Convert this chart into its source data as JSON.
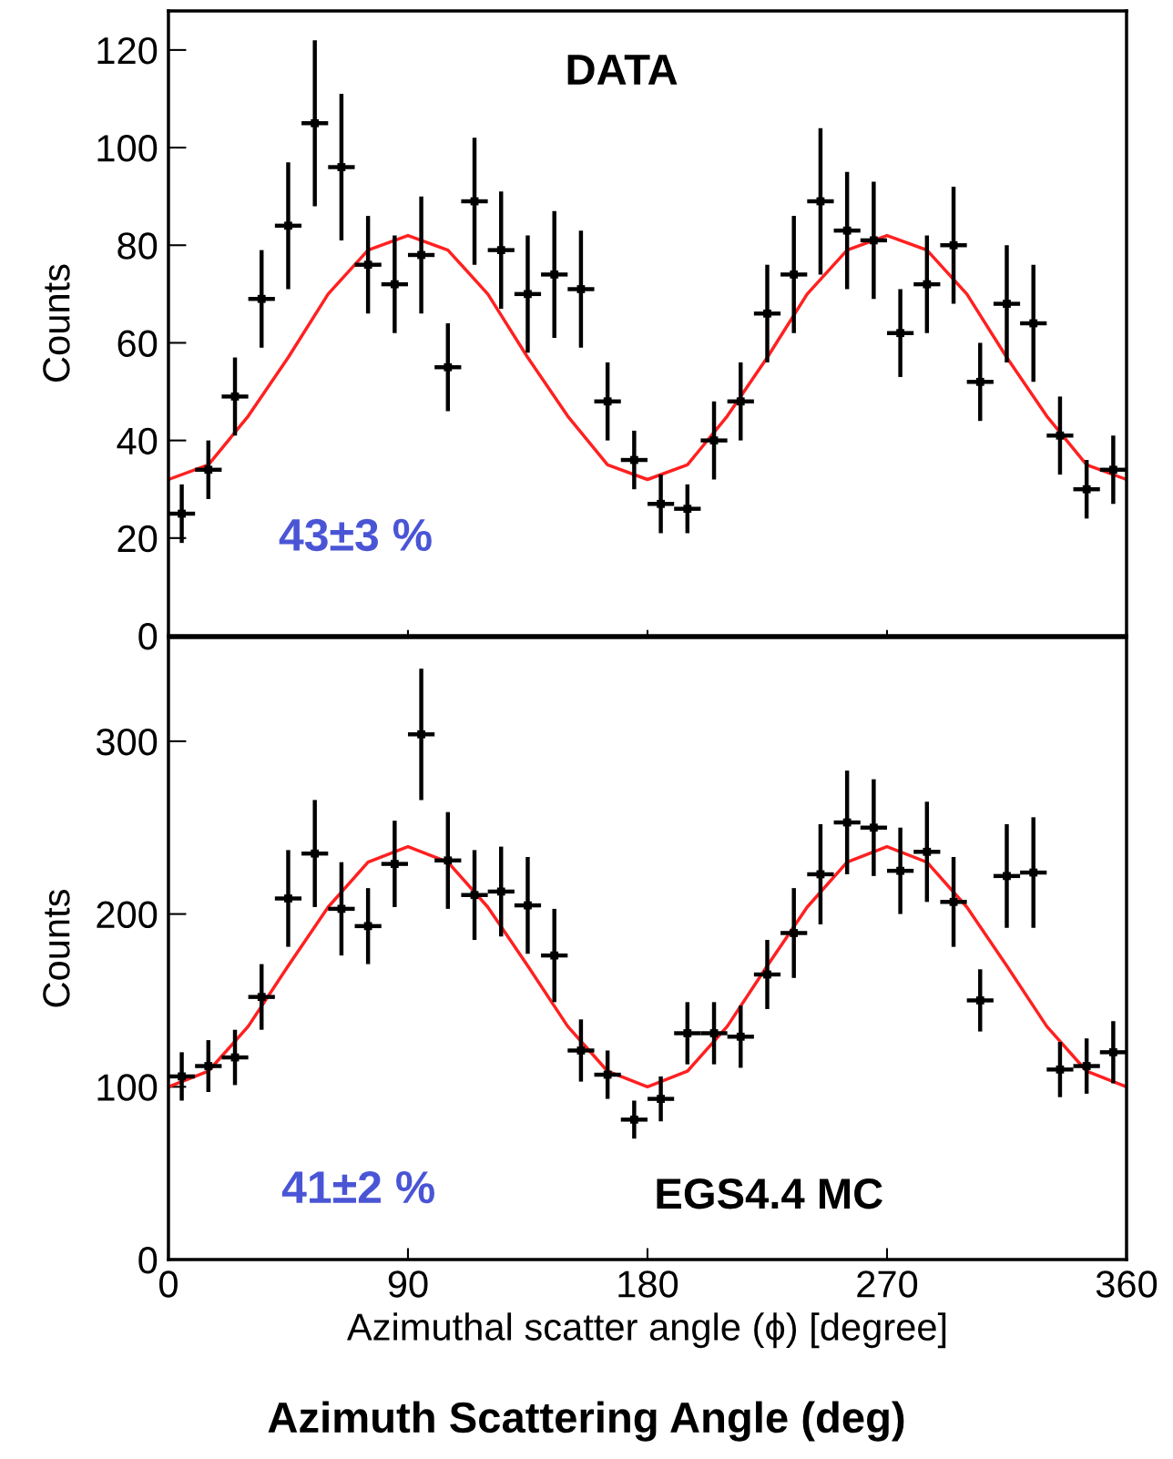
{
  "chart_data": [
    {
      "type": "scatter",
      "xlim": [
        0,
        360
      ],
      "xticks": [
        {
          "value": 0,
          "label": null
        },
        {
          "value": 90,
          "label": null
        },
        {
          "value": 180,
          "label": null
        },
        {
          "value": 270,
          "label": null
        },
        {
          "value": 360,
          "label": null
        }
      ],
      "ylim": [
        0,
        128
      ],
      "ylabel": "Counts",
      "tick_labels": "y",
      "grid": false,
      "legend": false,
      "yticks": [
        0,
        20,
        40,
        60,
        80,
        100,
        120
      ],
      "annotations": [
        "DATA",
        "43±3 %"
      ],
      "series": [
        {
          "color": "#000000",
          "marker": "square",
          "x": [
            5,
            15,
            25,
            35,
            45,
            55,
            65,
            75,
            85,
            95,
            105,
            115,
            125,
            135,
            145,
            155,
            165,
            175,
            185,
            195,
            205,
            215,
            225,
            235,
            245,
            255,
            265,
            275,
            285,
            295,
            305,
            315,
            325,
            335,
            345,
            355
          ],
          "values": [
            25,
            34,
            49,
            69,
            84,
            105,
            96,
            76,
            72,
            78,
            55,
            89,
            79,
            70,
            74,
            71,
            48,
            36,
            27,
            26,
            40,
            48,
            66,
            74,
            89,
            83,
            81,
            62,
            72,
            80,
            52,
            68,
            64,
            41,
            30,
            34
          ],
          "errors": [
            6,
            6,
            8,
            10,
            13,
            17,
            15,
            10,
            10,
            12,
            9,
            13,
            12,
            12,
            13,
            12,
            8,
            6,
            6,
            5,
            8,
            8,
            10,
            12,
            15,
            12,
            12,
            9,
            10,
            12,
            8,
            12,
            12,
            8,
            6,
            7
          ],
          "xerrors": [
            5,
            5,
            5,
            5,
            5,
            5,
            5,
            5,
            5,
            5,
            5,
            5,
            5,
            5,
            5,
            5,
            5,
            5,
            5,
            5,
            5,
            5,
            5,
            5,
            5,
            5,
            5,
            5,
            5,
            5,
            5,
            5,
            5,
            5,
            5,
            5
          ]
        },
        {
          "type": "line",
          "color": "#ff2020",
          "x": [
            0,
            15,
            30,
            45,
            60,
            75,
            90,
            105,
            120,
            135,
            150,
            165,
            180,
            195,
            210,
            225,
            240,
            255,
            270,
            285,
            300,
            315,
            330,
            345,
            360
          ],
          "values": [
            32,
            35,
            45,
            57,
            70,
            79,
            82,
            79,
            70,
            57,
            45,
            35,
            32,
            35,
            45,
            57,
            70,
            79,
            82,
            79,
            70,
            57,
            45,
            35,
            32
          ]
        }
      ]
    },
    {
      "type": "scatter",
      "xlim": [
        0,
        360
      ],
      "xticks": [
        0,
        90,
        180,
        270,
        360
      ],
      "ylim": [
        0,
        360
      ],
      "ylabel": "Counts",
      "xlabel": "Azimuthal scatter angle (ϕ) [degree]",
      "grid": false,
      "legend": false,
      "yticks": [
        0,
        100,
        200,
        300
      ],
      "annotations": [
        "41±2 %",
        "EGS4.4 MC",
        "Azimuth Scattering Angle (deg)"
      ],
      "series": [
        {
          "color": "#000000",
          "marker": "square",
          "x": [
            5,
            15,
            25,
            35,
            45,
            55,
            65,
            75,
            85,
            95,
            105,
            115,
            125,
            135,
            145,
            155,
            165,
            175,
            185,
            195,
            205,
            215,
            225,
            235,
            245,
            255,
            265,
            275,
            285,
            295,
            305,
            315,
            325,
            335,
            345,
            355
          ],
          "values": [
            106,
            112,
            117,
            152,
            209,
            235,
            203,
            193,
            229,
            304,
            231,
            211,
            213,
            205,
            176,
            121,
            107,
            81,
            93,
            131,
            131,
            129,
            165,
            189,
            223,
            253,
            250,
            225,
            236,
            207,
            150,
            222,
            224,
            110,
            112,
            120
          ],
          "errors": [
            14,
            15,
            16,
            19,
            28,
            31,
            27,
            22,
            25,
            38,
            28,
            26,
            26,
            28,
            27,
            18,
            14,
            11,
            13,
            18,
            18,
            18,
            20,
            26,
            29,
            30,
            28,
            25,
            29,
            26,
            18,
            30,
            32,
            16,
            16,
            18
          ],
          "xerrors": [
            5,
            5,
            5,
            5,
            5,
            5,
            5,
            5,
            5,
            5,
            5,
            5,
            5,
            5,
            5,
            5,
            5,
            5,
            5,
            5,
            5,
            5,
            5,
            5,
            5,
            5,
            5,
            5,
            5,
            5,
            5,
            5,
            5,
            5,
            5,
            5
          ]
        },
        {
          "type": "line",
          "color": "#ff2020",
          "x": [
            0,
            15,
            30,
            45,
            60,
            75,
            90,
            105,
            120,
            135,
            150,
            165,
            180,
            195,
            210,
            225,
            240,
            255,
            270,
            285,
            300,
            315,
            330,
            345,
            360
          ],
          "values": [
            100,
            109,
            135,
            170,
            204,
            230,
            239,
            230,
            204,
            170,
            135,
            109,
            100,
            109,
            135,
            170,
            204,
            230,
            239,
            230,
            204,
            170,
            135,
            109,
            100
          ]
        }
      ]
    }
  ]
}
